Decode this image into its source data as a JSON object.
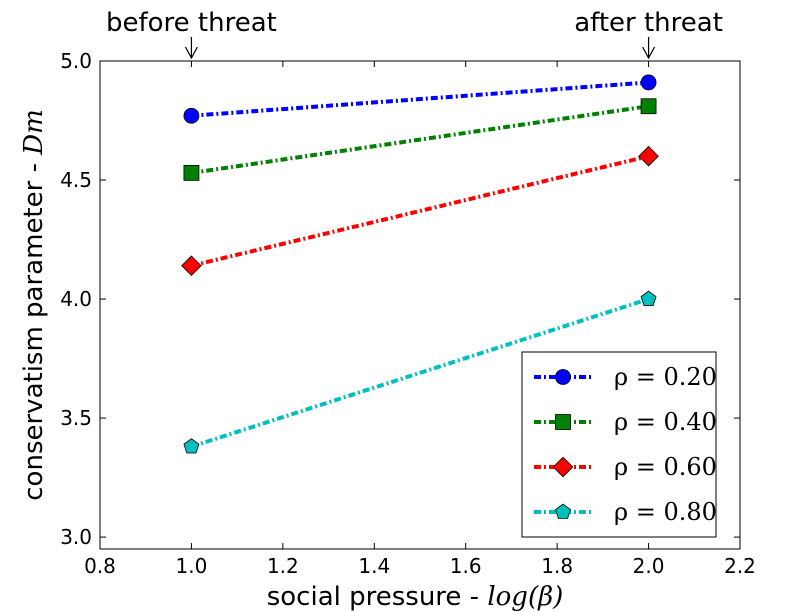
{
  "chart_data": {
    "type": "line",
    "xlabel": "social pressure - ",
    "xlabel_math": "log(β)",
    "ylabel": "conservatism parameter - ",
    "ylabel_math": "Dm",
    "xlim": [
      0.8,
      2.2
    ],
    "ylim": [
      2.95,
      5.0
    ],
    "xticks": [
      "0.8",
      "1.0",
      "1.2",
      "1.4",
      "1.6",
      "1.8",
      "2.0",
      "2.2"
    ],
    "yticks": [
      "3.0",
      "3.5",
      "4.0",
      "4.5",
      "5.0"
    ],
    "grid": false,
    "legend_position": "lower-right",
    "annotations": [
      {
        "text": "before threat",
        "x": 1.0
      },
      {
        "text": "after threat",
        "x": 2.0
      }
    ],
    "series": [
      {
        "name": "ρ = 0.20",
        "color": "#0000ff",
        "marker": "circle",
        "x": [
          1.0,
          2.0
        ],
        "y": [
          4.77,
          4.91
        ]
      },
      {
        "name": "ρ = 0.40",
        "color": "#008000",
        "marker": "square",
        "x": [
          1.0,
          2.0
        ],
        "y": [
          4.53,
          4.81
        ]
      },
      {
        "name": "ρ = 0.60",
        "color": "#ff0000",
        "marker": "diamond",
        "x": [
          1.0,
          2.0
        ],
        "y": [
          4.14,
          4.6
        ]
      },
      {
        "name": "ρ = 0.80",
        "color": "#00bfbf",
        "marker": "pentagon",
        "x": [
          1.0,
          2.0
        ],
        "y": [
          3.38,
          4.0
        ]
      }
    ]
  }
}
